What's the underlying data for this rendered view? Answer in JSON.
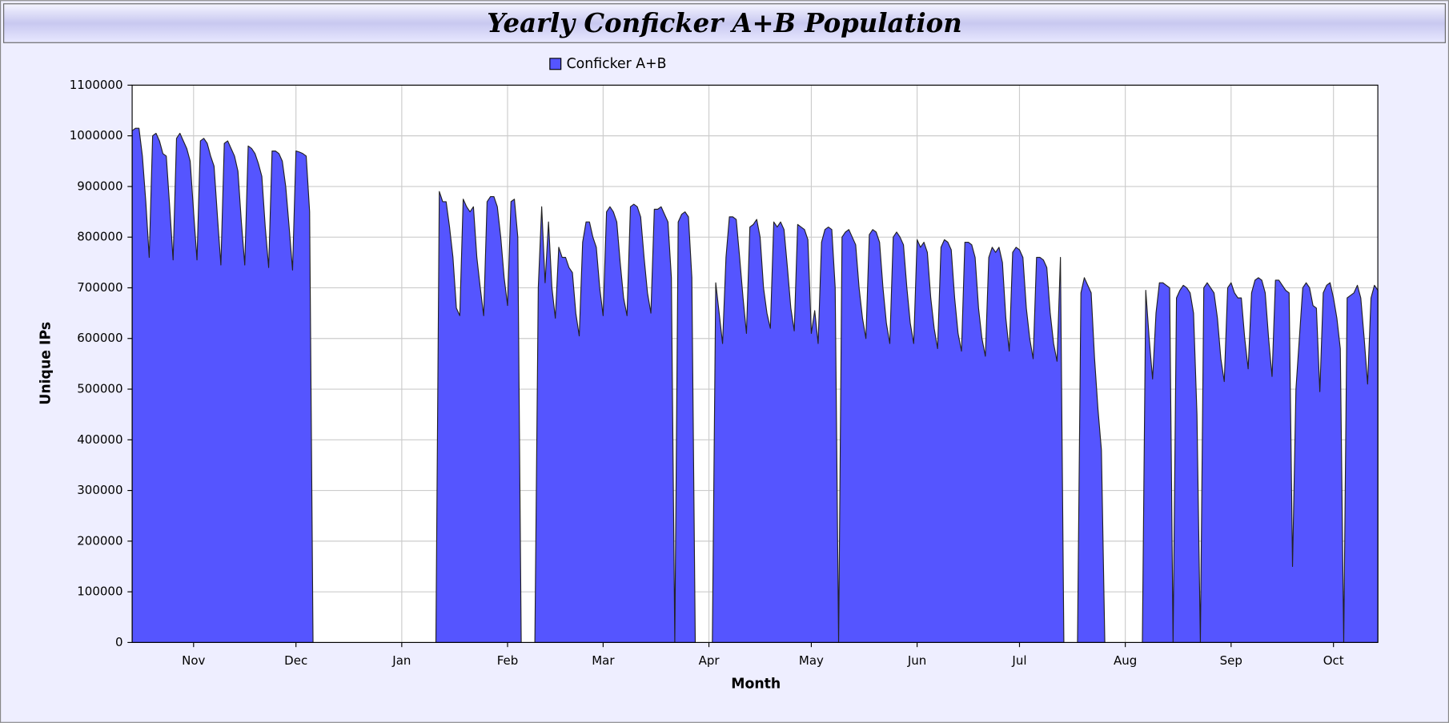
{
  "chart_data": {
    "type": "area",
    "title": "Yearly Conficker A+B Population",
    "x_label": "Month",
    "y_label": "Unique IPs",
    "legend": "top",
    "xlim": [
      0,
      365
    ],
    "xticks": [
      {
        "value": 18,
        "label": "Nov"
      },
      {
        "value": 48,
        "label": "Dec"
      },
      {
        "value": 79,
        "label": "Jan"
      },
      {
        "value": 110,
        "label": "Feb"
      },
      {
        "value": 138,
        "label": "Mar"
      },
      {
        "value": 169,
        "label": "Apr"
      },
      {
        "value": 199,
        "label": "May"
      },
      {
        "value": 230,
        "label": "Jun"
      },
      {
        "value": 260,
        "label": "Jul"
      },
      {
        "value": 291,
        "label": "Aug"
      },
      {
        "value": 322,
        "label": "Sep"
      },
      {
        "value": 352,
        "label": "Oct"
      }
    ],
    "ylim": [
      0,
      1100000
    ],
    "yticks": [
      0,
      100000,
      200000,
      300000,
      400000,
      500000,
      600000,
      700000,
      800000,
      900000,
      1000000,
      1100000
    ],
    "grid": true,
    "x": [
      0,
      1,
      2,
      3,
      4,
      5,
      6,
      7,
      8,
      9,
      10,
      11,
      12,
      13,
      14,
      15,
      16,
      17,
      18,
      19,
      20,
      21,
      22,
      23,
      24,
      25,
      26,
      27,
      28,
      29,
      30,
      31,
      32,
      33,
      34,
      35,
      36,
      37,
      38,
      39,
      40,
      41,
      42,
      43,
      44,
      45,
      46,
      47,
      48,
      49,
      50,
      51,
      52,
      53,
      54,
      55,
      56,
      57,
      58,
      59,
      60,
      61,
      62,
      63,
      64,
      65,
      66,
      67,
      68,
      69,
      70,
      71,
      72,
      73,
      74,
      75,
      76,
      77,
      78,
      79,
      80,
      81,
      82,
      83,
      84,
      85,
      86,
      87,
      88,
      89,
      90,
      91,
      92,
      93,
      94,
      95,
      96,
      97,
      98,
      99,
      100,
      101,
      102,
      103,
      104,
      105,
      106,
      107,
      108,
      109,
      110,
      111,
      112,
      113,
      114,
      115,
      116,
      117,
      118,
      119,
      120,
      121,
      122,
      123,
      124,
      125,
      126,
      127,
      128,
      129,
      130,
      131,
      132,
      133,
      134,
      135,
      136,
      137,
      138,
      139,
      140,
      141,
      142,
      143,
      144,
      145,
      146,
      147,
      148,
      149,
      150,
      151,
      152,
      153,
      154,
      155,
      156,
      157,
      158,
      159,
      160,
      161,
      162,
      163,
      164,
      165,
      166,
      167,
      168,
      169,
      170,
      171,
      172,
      173,
      174,
      175,
      176,
      177,
      178,
      179,
      180,
      181,
      182,
      183,
      184,
      185,
      186,
      187,
      188,
      189,
      190,
      191,
      192,
      193,
      194,
      195,
      196,
      197,
      198,
      199,
      200,
      201,
      202,
      203,
      204,
      205,
      206,
      207,
      208,
      209,
      210,
      211,
      212,
      213,
      214,
      215,
      216,
      217,
      218,
      219,
      220,
      221,
      222,
      223,
      224,
      225,
      226,
      227,
      228,
      229,
      230,
      231,
      232,
      233,
      234,
      235,
      236,
      237,
      238,
      239,
      240,
      241,
      242,
      243,
      244,
      245,
      246,
      247,
      248,
      249,
      250,
      251,
      252,
      253,
      254,
      255,
      256,
      257,
      258,
      259,
      260,
      261,
      262,
      263,
      264,
      265,
      266,
      267,
      268,
      269,
      270,
      271,
      272,
      273,
      274,
      275,
      276,
      277,
      278,
      279,
      280,
      281,
      282,
      283,
      284,
      285,
      286,
      287,
      288,
      289,
      290,
      291,
      292,
      293,
      294,
      295,
      296,
      297,
      298,
      299,
      300,
      301,
      302,
      303,
      304,
      305,
      306,
      307,
      308,
      309,
      310,
      311,
      312,
      313,
      314,
      315,
      316,
      317,
      318,
      319,
      320,
      321,
      322,
      323,
      324,
      325,
      326,
      327,
      328,
      329,
      330,
      331,
      332,
      333,
      334,
      335,
      336,
      337,
      338,
      339,
      340,
      341,
      342,
      343,
      344,
      345,
      346,
      347,
      348,
      349,
      350,
      351,
      352,
      353,
      354,
      355,
      356,
      357,
      358,
      359,
      360,
      361,
      362,
      363,
      364,
      365
    ],
    "series": [
      {
        "name": "Conficker A+B",
        "color": "#5555ff",
        "values": [
          1010000,
          1015000,
          1015000,
          960000,
          870000,
          760000,
          1000000,
          1005000,
          990000,
          965000,
          960000,
          860000,
          755000,
          995000,
          1005000,
          990000,
          975000,
          950000,
          850000,
          755000,
          990000,
          995000,
          985000,
          960000,
          940000,
          840000,
          745000,
          985000,
          990000,
          975000,
          960000,
          930000,
          830000,
          745000,
          980000,
          975000,
          965000,
          945000,
          920000,
          820000,
          740000,
          970000,
          970000,
          965000,
          950000,
          900000,
          820000,
          735000,
          970000,
          968000,
          965000,
          960000,
          850000,
          0,
          null,
          null,
          null,
          null,
          null,
          null,
          null,
          null,
          null,
          null,
          null,
          null,
          null,
          null,
          null,
          null,
          null,
          null,
          null,
          null,
          null,
          null,
          null,
          null,
          null,
          null,
          null,
          null,
          null,
          null,
          null,
          null,
          null,
          null,
          null,
          0,
          890000,
          870000,
          870000,
          820000,
          760000,
          660000,
          645000,
          875000,
          860000,
          850000,
          860000,
          760000,
          700000,
          645000,
          870000,
          880000,
          880000,
          860000,
          800000,
          720000,
          665000,
          870000,
          875000,
          800000,
          0,
          null,
          null,
          null,
          0,
          700000,
          860000,
          710000,
          830000,
          700000,
          640000,
          780000,
          760000,
          760000,
          740000,
          730000,
          650000,
          605000,
          790000,
          830000,
          830000,
          800000,
          780000,
          700000,
          645000,
          850000,
          860000,
          850000,
          830000,
          750000,
          680000,
          645000,
          860000,
          865000,
          860000,
          840000,
          760000,
          690000,
          650000,
          855000,
          855000,
          860000,
          845000,
          830000,
          720000,
          0,
          830000,
          845000,
          850000,
          840000,
          720000,
          0,
          null,
          null,
          null,
          null,
          0,
          710000,
          650000,
          590000,
          760000,
          840000,
          840000,
          835000,
          760000,
          680000,
          610000,
          820000,
          825000,
          835000,
          800000,
          700000,
          650000,
          620000,
          830000,
          820000,
          830000,
          815000,
          740000,
          660000,
          615000,
          825000,
          820000,
          815000,
          795000,
          610000,
          655000,
          590000,
          790000,
          815000,
          820000,
          815000,
          700000,
          0,
          800000,
          810000,
          815000,
          800000,
          785000,
          700000,
          640000,
          600000,
          805000,
          815000,
          810000,
          790000,
          700000,
          630000,
          590000,
          800000,
          810000,
          800000,
          785000,
          700000,
          630000,
          590000,
          795000,
          780000,
          790000,
          770000,
          680000,
          620000,
          580000,
          780000,
          795000,
          790000,
          775000,
          680000,
          610000,
          575000,
          790000,
          790000,
          785000,
          760000,
          660000,
          600000,
          565000,
          760000,
          780000,
          770000,
          780000,
          750000,
          640000,
          575000,
          770000,
          780000,
          775000,
          760000,
          660000,
          600000,
          560000,
          760000,
          760000,
          755000,
          740000,
          650000,
          590000,
          555000,
          760000,
          0,
          null,
          null,
          null,
          0,
          690000,
          720000,
          705000,
          690000,
          560000,
          460000,
          380000,
          0,
          null,
          null,
          null,
          null,
          null,
          null,
          null,
          null,
          null,
          null,
          0,
          695000,
          600000,
          520000,
          650000,
          710000,
          710000,
          705000,
          700000,
          0,
          680000,
          695000,
          705000,
          700000,
          690000,
          650000,
          450000,
          0,
          700000,
          710000,
          700000,
          690000,
          640000,
          560000,
          515000,
          700000,
          710000,
          690000,
          680000,
          680000,
          600000,
          540000,
          690000,
          715000,
          720000,
          715000,
          690000,
          600000,
          525000,
          715000,
          715000,
          705000,
          695000,
          690000,
          150000,
          500000,
          600000,
          700000,
          710000,
          700000,
          665000,
          660000,
          495000,
          690000,
          705000,
          710000,
          680000,
          640000,
          580000,
          0,
          680000,
          685000,
          690000,
          705000,
          680000,
          600000,
          510000,
          680000,
          705000,
          695000
        ]
      }
    ]
  }
}
